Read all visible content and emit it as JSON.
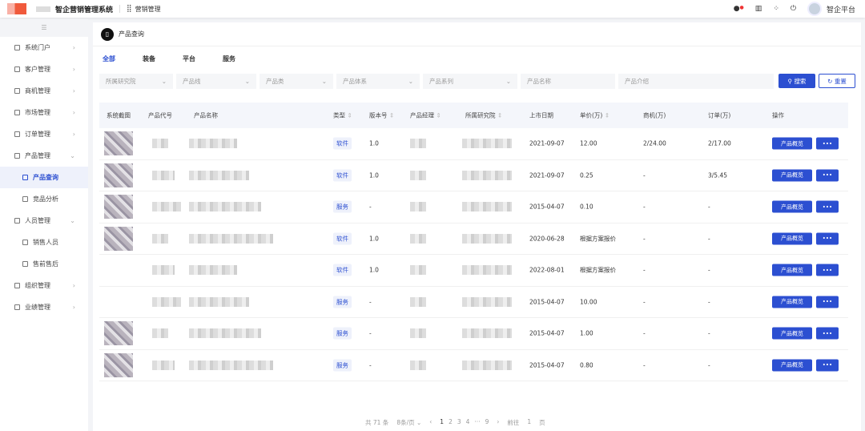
{
  "header": {
    "app_title": "智企营销管理系统",
    "module": "营销管理",
    "user": "智企平台"
  },
  "sidebar": {
    "items": [
      {
        "label": "系统门户",
        "level": 1,
        "chevron": "›"
      },
      {
        "label": "客户管理",
        "level": 1,
        "chevron": "›"
      },
      {
        "label": "商机管理",
        "level": 1,
        "chevron": "›"
      },
      {
        "label": "市场管理",
        "level": 1,
        "chevron": "›"
      },
      {
        "label": "订单管理",
        "level": 1,
        "chevron": "›"
      },
      {
        "label": "产品管理",
        "level": 1,
        "chevron": "⌄"
      },
      {
        "label": "产品查询",
        "level": 2,
        "active": true
      },
      {
        "label": "竞品分析",
        "level": 2
      },
      {
        "label": "人员管理",
        "level": 1,
        "chevron": "⌄"
      },
      {
        "label": "销售人员",
        "level": 2
      },
      {
        "label": "售前售后",
        "level": 2
      },
      {
        "label": "组织管理",
        "level": 1,
        "chevron": "›"
      },
      {
        "label": "业绩管理",
        "level": 1,
        "chevron": "›"
      }
    ]
  },
  "page": {
    "title": "产品查询",
    "tabs": [
      "全部",
      "装备",
      "平台",
      "服务"
    ]
  },
  "filters": {
    "selects": [
      "所属研究院",
      "产品线",
      "产品类",
      "产品体系",
      "产品系列"
    ],
    "inputs": [
      "产品名称",
      "产品介绍"
    ],
    "search": "搜索",
    "reset": "重置"
  },
  "table": {
    "headers": [
      "系统截图",
      "产品代号",
      "产品名称",
      "类型",
      "版本号",
      "产品经理",
      "所属研究院",
      "上市日期",
      "单价(万)",
      "商机(万)",
      "订单(万)",
      "操作"
    ],
    "rows": [
      {
        "type": "软件",
        "version": "1.0",
        "date": "2021-09-07",
        "price": "12.00",
        "opp": "2/24.00",
        "order": "2/17.00"
      },
      {
        "type": "软件",
        "version": "1.0",
        "date": "2021-09-07",
        "price": "0.25",
        "opp": "-",
        "order": "3/5.45"
      },
      {
        "type": "服务",
        "version": "-",
        "date": "2015-04-07",
        "price": "0.10",
        "opp": "-",
        "order": "-"
      },
      {
        "type": "软件",
        "version": "1.0",
        "date": "2020-06-28",
        "price": "根据方案报价",
        "opp": "-",
        "order": "-"
      },
      {
        "type": "软件",
        "version": "1.0",
        "date": "2022-08-01",
        "price": "根据方案报价",
        "opp": "-",
        "order": "-"
      },
      {
        "type": "服务",
        "version": "-",
        "date": "2015-04-07",
        "price": "10.00",
        "opp": "-",
        "order": "-"
      },
      {
        "type": "服务",
        "version": "-",
        "date": "2015-04-07",
        "price": "1.00",
        "opp": "-",
        "order": "-"
      },
      {
        "type": "服务",
        "version": "-",
        "date": "2015-04-07",
        "price": "0.80",
        "opp": "-",
        "order": "-"
      }
    ],
    "action_label": "产品概览",
    "more_label": "•••"
  },
  "pagination": {
    "total": "共 71 条",
    "page_size": "8条/页",
    "pages": [
      "1",
      "2",
      "3",
      "4",
      "···",
      "9"
    ],
    "current": "1",
    "goto_label": "前往",
    "goto_value": "1",
    "page_unit": "页"
  },
  "colors": {
    "primary": "#2c4fd1"
  }
}
